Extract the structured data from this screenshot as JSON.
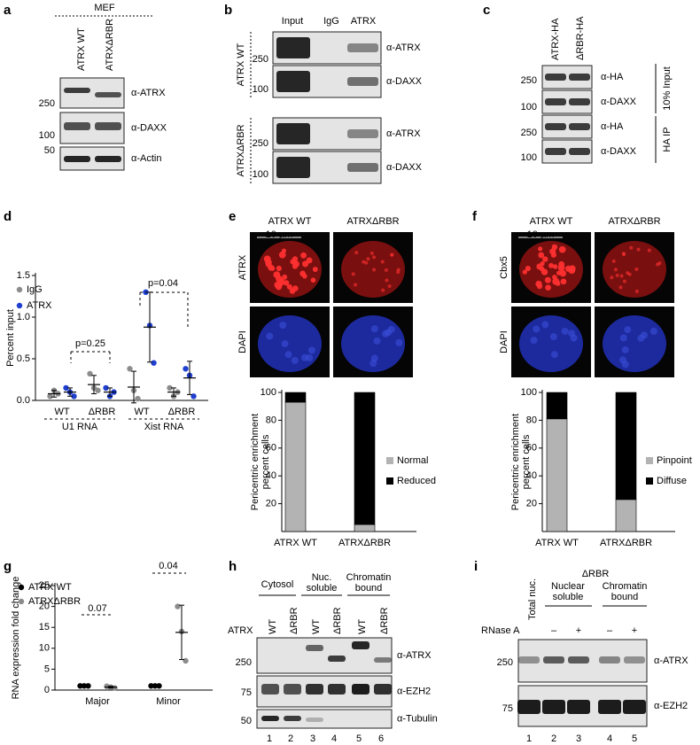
{
  "figure": {
    "a": {
      "letter": "a",
      "header": "MEF",
      "lanes": [
        "ATRX WT",
        "ATRXΔRBR"
      ],
      "markers": [
        "250",
        "100",
        "50"
      ],
      "blots": [
        "α-ATRX",
        "α-DAXX",
        "α-Actin"
      ]
    },
    "b": {
      "letter": "b",
      "columns": [
        "Input",
        "IgG",
        "ATRX"
      ],
      "groups": [
        "ATRX WT",
        "ATRXΔRBR"
      ],
      "markers": [
        "250",
        "100",
        "250",
        "100"
      ],
      "blots": [
        "α-ATRX",
        "α-DAXX",
        "α-ATRX",
        "α-DAXX"
      ]
    },
    "c": {
      "letter": "c",
      "lanes": [
        "ATRX-HA",
        "ΔRBR-HA"
      ],
      "markers": [
        "250",
        "100",
        "250",
        "100"
      ],
      "blots": [
        "α-HA",
        "α-DAXX",
        "α-HA",
        "α-DAXX"
      ],
      "sides": [
        "10% Input",
        "HA IP"
      ]
    },
    "d": {
      "letter": "d"
    },
    "e": {
      "letter": "e",
      "columns": [
        "ATRX WT",
        "ATRXΔRBR"
      ],
      "rows": [
        "ATRX",
        "DAPI"
      ],
      "scale": "10 µm"
    },
    "f": {
      "letter": "f",
      "columns": [
        "ATRX WT",
        "ATRXΔRBR"
      ],
      "rows": [
        "Cbx5",
        "DAPI"
      ],
      "scale": "10 µm"
    },
    "g": {
      "letter": "g"
    },
    "h": {
      "letter": "h",
      "groups": [
        [
          "Cytosol"
        ],
        [
          "Nuc.",
          "soluble"
        ],
        [
          "Chromatin",
          "bound"
        ]
      ],
      "row": "ATRX",
      "lanes": [
        "WT",
        "ΔRBR",
        "WT",
        "ΔRBR",
        "WT",
        "ΔRBR"
      ],
      "markers": [
        "250",
        "75",
        "50"
      ],
      "blots": [
        "α-ATRX",
        "α-EZH2",
        "α-Tubulin"
      ],
      "numbers": [
        "1",
        "2",
        "3",
        "4",
        "5",
        "6"
      ]
    },
    "i": {
      "letter": "i",
      "title": "ΔRBR",
      "total": "Total nuc.",
      "groups": [
        [
          "Nuclear",
          "soluble"
        ],
        [
          "Chromatin",
          "bound"
        ]
      ],
      "treatment": "RNase A",
      "signs": [
        "–",
        "+",
        "–",
        "+"
      ],
      "markers": [
        "250",
        "75"
      ],
      "blots": [
        "α-ATRX",
        "α-EZH2"
      ],
      "numbers": [
        "1",
        "2",
        "3",
        "4",
        "5"
      ]
    }
  },
  "chart_data": [
    {
      "type": "scatter",
      "ylabel": "Percent input",
      "ylim": [
        0,
        1.5
      ],
      "yticks": [
        {
          "value": 0,
          "label": "0.0"
        },
        0.5,
        {
          "value": 1,
          "label": "1.0"
        },
        1.5
      ],
      "categories": [
        "WT",
        "ΔRBR",
        "WT",
        "ΔRBR"
      ],
      "groups": [
        "U1 RNA",
        "Xist RNA"
      ],
      "series": [
        {
          "name": "IgG",
          "color": "#8c8c8c",
          "values": [
            [
              0.05,
              0.12,
              0.08
            ],
            [
              0.32,
              0.15,
              0.12
            ],
            [
              0.38,
              0.12,
              0.02
            ],
            [
              0.15,
              0.05,
              0.1
            ]
          ],
          "means": [
            0.08,
            0.19,
            0.16,
            0.1
          ],
          "errors": [
            0.04,
            0.11,
            0.19,
            0.05
          ]
        },
        {
          "name": "ATRX",
          "color": "#1f3fcf",
          "values": [
            [
              0.15,
              0.1,
              0.05
            ],
            [
              0.15,
              0.05,
              0.1
            ],
            [
              1.3,
              0.9,
              0.45
            ],
            [
              0.38,
              0.3,
              0.05
            ]
          ],
          "means": [
            0.1,
            0.1,
            0.88,
            0.27
          ],
          "errors": [
            0.05,
            0.05,
            0.42,
            0.2
          ]
        }
      ],
      "annotations": [
        "p=0.25",
        "p=0.04"
      ]
    },
    {
      "type": "stacked-bar",
      "ylabel": [
        "Pericentric enrichment",
        "percent cells"
      ],
      "ylim": [
        0,
        100
      ],
      "yticks": [
        20,
        40,
        60,
        80,
        100
      ],
      "categories": [
        "ATRX WT",
        "ATRXΔRBR"
      ],
      "series": [
        {
          "name": "Normal",
          "color": "#b3b3b3",
          "values": [
            93,
            5
          ]
        },
        {
          "name": "Reduced",
          "color": "#000000",
          "values": [
            7,
            95
          ]
        }
      ]
    },
    {
      "type": "stacked-bar",
      "ylabel": [
        "Pericentric enrichment",
        "percent cells"
      ],
      "ylim": [
        0,
        100
      ],
      "yticks": [
        20,
        40,
        60,
        80,
        100
      ],
      "categories": [
        "ATRX WT",
        "ATRXΔRBR"
      ],
      "series": [
        {
          "name": "Pinpoint",
          "color": "#b3b3b3",
          "values": [
            81,
            23
          ]
        },
        {
          "name": "Diffuse",
          "color": "#000000",
          "values": [
            19,
            77
          ]
        }
      ]
    },
    {
      "type": "scatter",
      "ylabel": "RNA expression fold change",
      "ylim": [
        0,
        25
      ],
      "yticks": [
        0,
        5,
        10,
        15,
        20,
        25
      ],
      "categories": [
        "Major",
        "Minor"
      ],
      "series": [
        {
          "name": "ATRX WT",
          "color": "#000000",
          "values": [
            [
              1,
              1,
              1
            ],
            [
              1,
              1,
              1
            ]
          ]
        },
        {
          "name": "ATRXΔRBR",
          "color": "#8c8c8c",
          "values": [
            [
              0.9,
              0.7,
              0.5
            ],
            [
              20,
              14,
              7
            ]
          ],
          "means": [
            0.7,
            13.8
          ],
          "errors": [
            0.2,
            6.5
          ]
        }
      ],
      "annotations": [
        "0.07",
        "0.04"
      ]
    }
  ]
}
